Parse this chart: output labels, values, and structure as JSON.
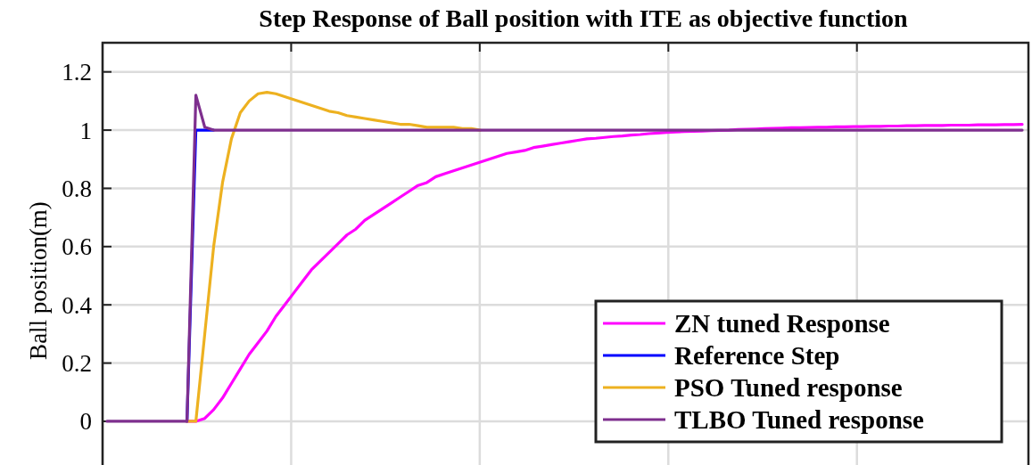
{
  "chart_data": {
    "type": "line",
    "title": "Step Response of Ball position with ITE as objective function",
    "ylabel": "Ball position(m)",
    "categories": [
      null,
      null,
      null,
      null,
      null,
      null,
      null,
      null,
      null,
      null,
      null,
      null,
      null,
      null,
      null,
      null,
      null,
      null,
      null,
      null,
      null,
      null,
      null,
      null,
      null,
      null,
      null,
      null,
      null,
      null,
      null,
      null,
      null,
      null,
      null,
      null,
      null,
      null,
      null,
      null,
      null,
      null,
      null,
      null,
      null,
      null,
      null,
      null,
      null,
      null,
      null,
      null,
      null,
      null,
      null,
      null,
      null,
      null,
      null,
      null,
      null,
      null,
      null,
      null,
      null,
      null,
      null,
      null,
      null,
      null,
      null,
      null,
      null,
      null,
      null,
      null,
      null,
      null,
      null,
      null,
      null,
      null,
      null,
      null,
      null,
      null,
      null,
      null,
      null,
      null,
      null,
      null,
      null,
      null,
      null,
      null,
      null,
      null,
      null,
      null,
      null,
      null,
      null,
      null
    ],
    "ylim": [
      -0.15,
      1.3
    ],
    "yticks": [
      0,
      0.2,
      0.4,
      0.6,
      0.8,
      1,
      1.2
    ],
    "grid": true,
    "legend": "bottom right",
    "line_style": "solid",
    "series": [
      {
        "name": "ZN tuned Response",
        "color": "#ff00ff",
        "values": [
          null,
          null,
          null,
          null,
          null,
          null,
          null,
          null,
          null,
          0,
          0,
          0.01,
          0.04,
          0.08,
          0.13,
          0.18,
          0.23,
          0.27,
          0.31,
          0.36,
          0.4,
          0.44,
          0.48,
          0.52,
          0.55,
          0.58,
          0.61,
          0.64,
          0.66,
          0.69,
          0.71,
          0.73,
          0.75,
          0.77,
          0.79,
          0.81,
          0.82,
          0.84,
          0.85,
          0.86,
          0.87,
          0.88,
          0.89,
          0.9,
          0.91,
          0.92,
          0.925,
          0.93,
          0.94,
          0.945,
          0.95,
          0.955,
          0.96,
          0.965,
          0.97,
          0.972,
          0.975,
          0.978,
          0.98,
          0.983,
          0.985,
          0.988,
          0.99,
          0.992,
          0.994,
          0.995,
          0.996,
          0.997,
          0.998,
          0.999,
          1,
          1.002,
          1.003,
          1.004,
          1.005,
          1.006,
          1.007,
          1.008,
          1.008,
          1.009,
          1.01,
          1.01,
          1.011,
          1.011,
          1.012,
          1.012,
          1.013,
          1.013,
          1.014,
          1.014,
          1.015,
          1.015,
          1.016,
          1.016,
          1.016,
          1.017,
          1.017,
          1.017,
          1.018,
          1.018,
          1.018,
          1.019,
          1.019,
          1.02
        ]
      },
      {
        "name": "Reference Step",
        "color": "#0000ff",
        "values": [
          null,
          null,
          null,
          null,
          null,
          null,
          null,
          null,
          null,
          0,
          1,
          1,
          1,
          null,
          null,
          null,
          null,
          null,
          null,
          null,
          null,
          null,
          null,
          null,
          null,
          null,
          null,
          null,
          null,
          null,
          null,
          null,
          null,
          null,
          null,
          null,
          null,
          null,
          null,
          null,
          null,
          null,
          null,
          null,
          null,
          null,
          null,
          null,
          null,
          null,
          null,
          null,
          null,
          null,
          null,
          null,
          null,
          null,
          null,
          null,
          null,
          null,
          null,
          null,
          null,
          null,
          null,
          null,
          null,
          null,
          null,
          null,
          null,
          null,
          null,
          null,
          null,
          null,
          null,
          null,
          null,
          null,
          null,
          null,
          null,
          null,
          null,
          null,
          null,
          null,
          null,
          null,
          null,
          null,
          null,
          null,
          null,
          null,
          null,
          null,
          null,
          null,
          null,
          null
        ]
      },
      {
        "name": "PSO Tuned response",
        "color": "#edb120",
        "values": [
          null,
          null,
          null,
          null,
          null,
          null,
          null,
          null,
          null,
          0,
          0,
          0.3,
          0.6,
          0.82,
          0.97,
          1.06,
          1.1,
          1.125,
          1.13,
          1.125,
          1.115,
          1.105,
          1.095,
          1.085,
          1.075,
          1.065,
          1.06,
          1.05,
          1.045,
          1.04,
          1.035,
          1.03,
          1.025,
          1.02,
          1.02,
          1.015,
          1.01,
          1.01,
          1.01,
          1.01,
          1.005,
          1.005,
          1,
          null,
          null,
          null,
          null,
          null,
          null,
          null,
          null,
          null,
          null,
          null,
          null,
          null,
          null,
          null,
          null,
          null,
          null,
          null,
          null,
          null,
          null,
          null,
          null,
          null,
          null,
          null,
          null,
          null,
          null,
          null,
          null,
          null,
          null,
          null,
          null,
          null,
          null,
          null,
          null,
          null,
          null,
          null,
          null,
          null,
          null,
          null,
          null,
          null,
          null,
          null,
          null,
          null,
          null,
          null,
          null,
          null,
          null,
          null,
          null,
          null
        ]
      },
      {
        "name": "TLBO Tuned response",
        "color": "#7e2f8e",
        "values": [
          0,
          0,
          0,
          0,
          0,
          0,
          0,
          0,
          0,
          0,
          1.12,
          1.01,
          1,
          1,
          1,
          1,
          1,
          1,
          1,
          1,
          1,
          1,
          1,
          1,
          1,
          1,
          1,
          1,
          1,
          1,
          1,
          1,
          1,
          1,
          1,
          1,
          1,
          1,
          1,
          1,
          1,
          1,
          1,
          1,
          1,
          1,
          1,
          1,
          1,
          1,
          1,
          1,
          1,
          1,
          1,
          1,
          1,
          1,
          1,
          1,
          1,
          1,
          1,
          1,
          1,
          1,
          1,
          1,
          1,
          1,
          1,
          1,
          1,
          1,
          1,
          1,
          1,
          1,
          1,
          1,
          1,
          1,
          1,
          1,
          1,
          1,
          1,
          1,
          1,
          1,
          1,
          1,
          1,
          1,
          1,
          1,
          1,
          1,
          1,
          1,
          1,
          1,
          1,
          1
        ]
      }
    ]
  }
}
